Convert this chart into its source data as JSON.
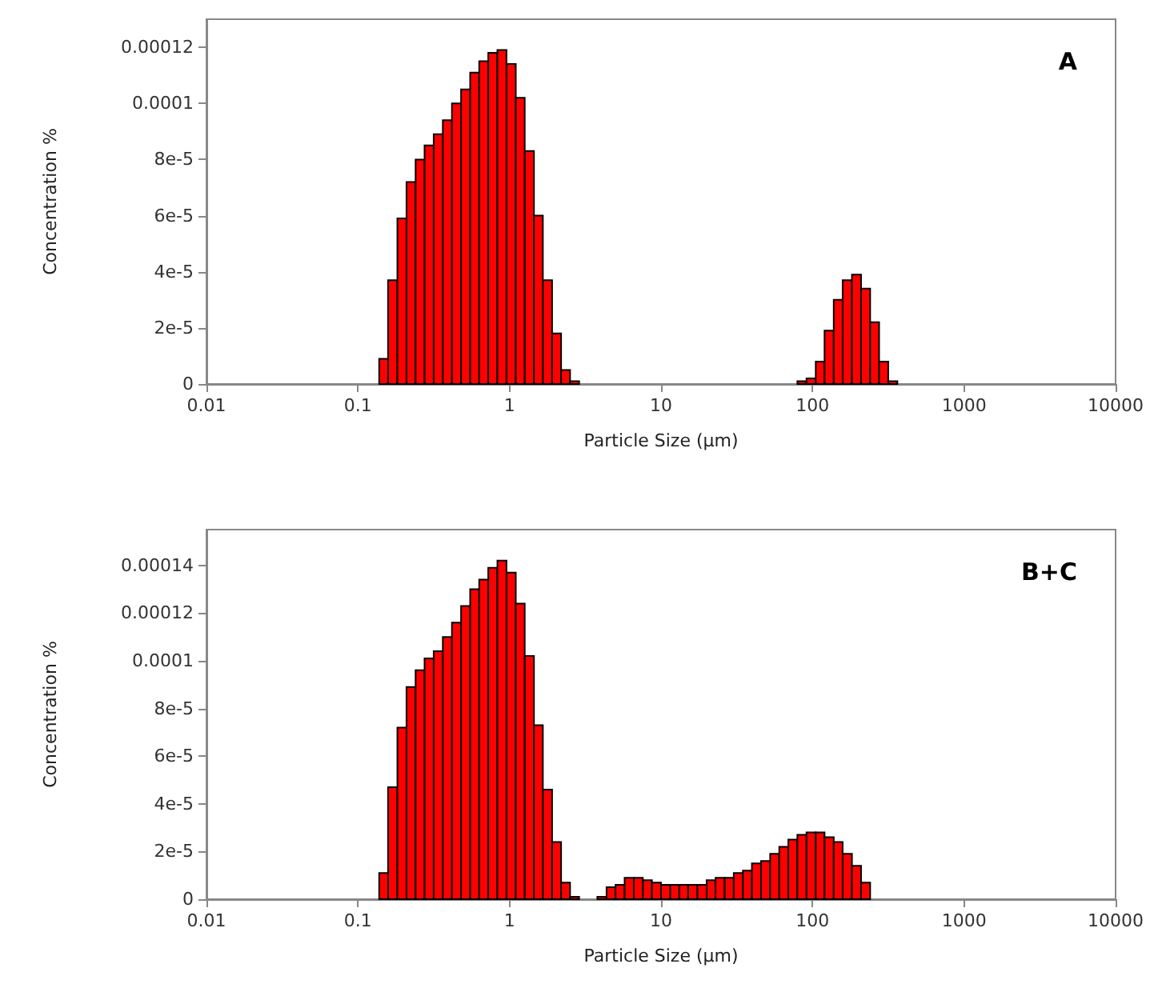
{
  "chart_data": [
    {
      "type": "histogram",
      "title": "A",
      "xlabel": "Particle Size (µm)",
      "ylabel": "Concentration %",
      "color": "#ff0000",
      "log": "x",
      "grid": false,
      "bins": [
        0.138,
        0.158,
        0.182,
        0.209,
        0.24,
        0.275,
        0.316,
        0.363,
        0.417,
        0.479,
        0.55,
        0.631,
        0.724,
        0.832,
        0.955,
        1.1,
        1.26,
        1.45,
        1.66,
        1.91,
        2.19,
        2.51,
        2.88,
        79.4,
        91.2,
        105,
        120,
        138,
        158,
        182,
        209,
        240,
        275,
        316,
        363
      ],
      "values": [
        9e-06,
        3.7e-05,
        5.9e-05,
        7.2e-05,
        8e-05,
        8.5e-05,
        8.9e-05,
        9.4e-05,
        0.0001,
        0.000105,
        0.000111,
        0.000115,
        0.000118,
        0.000119,
        0.000114,
        0.000102,
        8.3e-05,
        6e-05,
        3.7e-05,
        1.8e-05,
        5e-06,
        1e-06,
        0,
        1e-06,
        2e-06,
        8e-06,
        1.9e-05,
        3e-05,
        3.7e-05,
        3.9e-05,
        3.4e-05,
        2.2e-05,
        8e-06,
        1e-06
      ],
      "xlim": [
        0.01,
        10000
      ],
      "xticks": [
        0.01,
        0.1,
        1,
        10,
        100,
        1000,
        10000
      ],
      "ylim": [
        0,
        0.00013
      ],
      "yticks": [
        0,
        {
          "value": 2e-05,
          "label": "2e-5"
        },
        {
          "value": 4e-05,
          "label": "4e-5"
        },
        {
          "value": 6e-05,
          "label": "6e-5"
        },
        {
          "value": 8e-05,
          "label": "8e-5"
        },
        0.0001,
        0.00012
      ]
    },
    {
      "type": "histogram",
      "title": "B+C",
      "xlabel": "Particle Size (µm)",
      "ylabel": "Concentration %",
      "color": "#ff0000",
      "log": "x",
      "grid": false,
      "bins": [
        0.138,
        0.158,
        0.182,
        0.209,
        0.24,
        0.275,
        0.316,
        0.363,
        0.417,
        0.479,
        0.55,
        0.631,
        0.724,
        0.832,
        0.955,
        1.1,
        1.26,
        1.45,
        1.66,
        1.91,
        2.19,
        2.51,
        2.88,
        3.8,
        4.37,
        5.01,
        5.75,
        6.61,
        7.59,
        8.71,
        10.0,
        11.5,
        13.2,
        15.1,
        17.4,
        20.0,
        22.9,
        26.3,
        30.2,
        34.7,
        39.8,
        45.7,
        52.5,
        60.3,
        69.2,
        79.4,
        91.2,
        105,
        120,
        138,
        158,
        182,
        209,
        240
      ],
      "values": [
        1.1e-05,
        4.7e-05,
        7.2e-05,
        8.9e-05,
        9.6e-05,
        0.000101,
        0.000104,
        0.00011,
        0.000116,
        0.000123,
        0.00013,
        0.000134,
        0.000139,
        0.000142,
        0.000137,
        0.000124,
        0.000102,
        7.3e-05,
        4.6e-05,
        2.4e-05,
        7e-06,
        1e-06,
        0,
        1e-06,
        5e-06,
        6e-06,
        9e-06,
        9e-06,
        8e-06,
        7e-06,
        6e-06,
        6e-06,
        6e-06,
        6e-06,
        6e-06,
        8e-06,
        9e-06,
        9e-06,
        1.1e-05,
        1.2e-05,
        1.5e-05,
        1.6e-05,
        1.9e-05,
        2.2e-05,
        2.5e-05,
        2.7e-05,
        2.8e-05,
        2.8e-05,
        2.6e-05,
        2.4e-05,
        1.9e-05,
        1.4e-05,
        7e-06
      ],
      "xlim": [
        0.01,
        10000
      ],
      "xticks": [
        0.01,
        0.1,
        1,
        10,
        100,
        1000,
        10000
      ],
      "ylim": [
        0,
        0.000155
      ],
      "yticks": [
        0,
        {
          "value": 2e-05,
          "label": "2e-5"
        },
        {
          "value": 4e-05,
          "label": "4e-5"
        },
        {
          "value": 6e-05,
          "label": "6e-5"
        },
        {
          "value": 8e-05,
          "label": "8e-5"
        },
        0.0001,
        0.00012,
        0.00014
      ]
    }
  ]
}
